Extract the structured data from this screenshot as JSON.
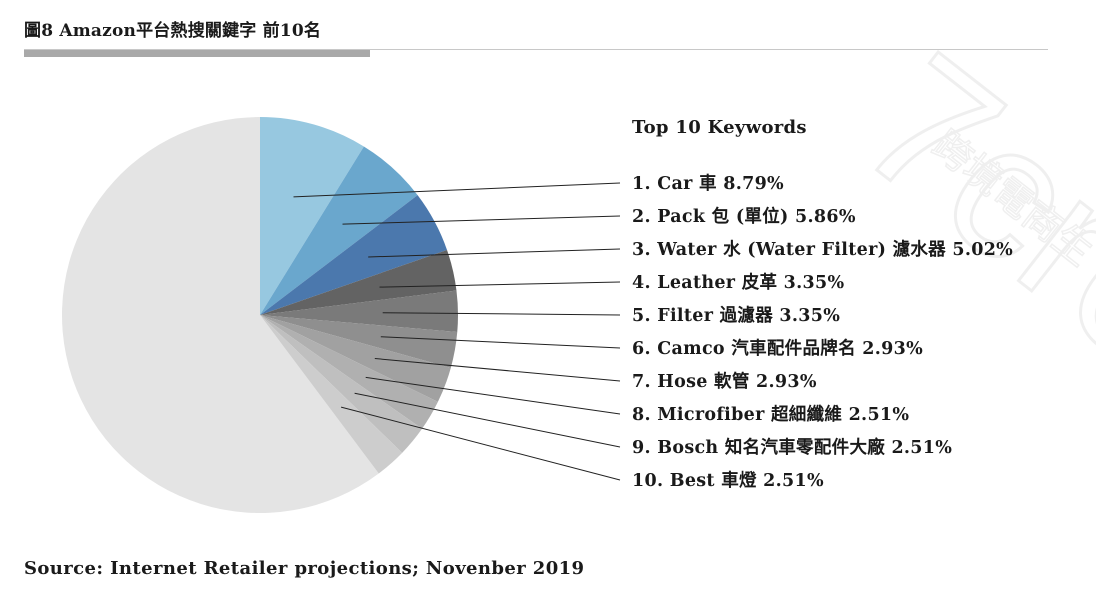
{
  "header": {
    "title": "圖8 Amazon平台熱搜關鍵字 前10名"
  },
  "footer": {
    "source": "Source: Internet Retailer projections; Novenber 2019"
  },
  "watermark": {
    "text_latin": "7cre",
    "text_cjk": "跨境電商生"
  },
  "chart_data": {
    "type": "pie",
    "legend_title": "Top 10 Keywords",
    "slices": [
      {
        "label": "1. Car 車 8.79%",
        "value": 8.79,
        "color": "#97c8e0"
      },
      {
        "label": "2. Pack 包 (單位) 5.86%",
        "value": 5.86,
        "color": "#6aa7cd"
      },
      {
        "label": "3. Water 水 (Water Filter) 濾水器 5.02%",
        "value": 5.02,
        "color": "#4b78ad"
      },
      {
        "label": "4. Leather 皮革 3.35%",
        "value": 3.35,
        "color": "#636363"
      },
      {
        "label": "5. Filter 過濾器 3.35%",
        "value": 3.35,
        "color": "#7a7a7a"
      },
      {
        "label": "6. Camco 汽車配件品牌名 2.93%",
        "value": 2.93,
        "color": "#8f8f8f"
      },
      {
        "label": "7. Hose 軟管 2.93%",
        "value": 2.93,
        "color": "#a1a1a1"
      },
      {
        "label": "8. Microfiber 超細纖維 2.51%",
        "value": 2.51,
        "color": "#b0b0b0"
      },
      {
        "label": "9. Bosch 知名汽車零配件大廠 2.51%",
        "value": 2.51,
        "color": "#bfbfbf"
      },
      {
        "label": "10. Best 車燈 2.51%",
        "value": 2.51,
        "color": "#cdcdcd"
      }
    ],
    "remainder": {
      "value": 60.23,
      "color": "#e4e4e4"
    }
  }
}
